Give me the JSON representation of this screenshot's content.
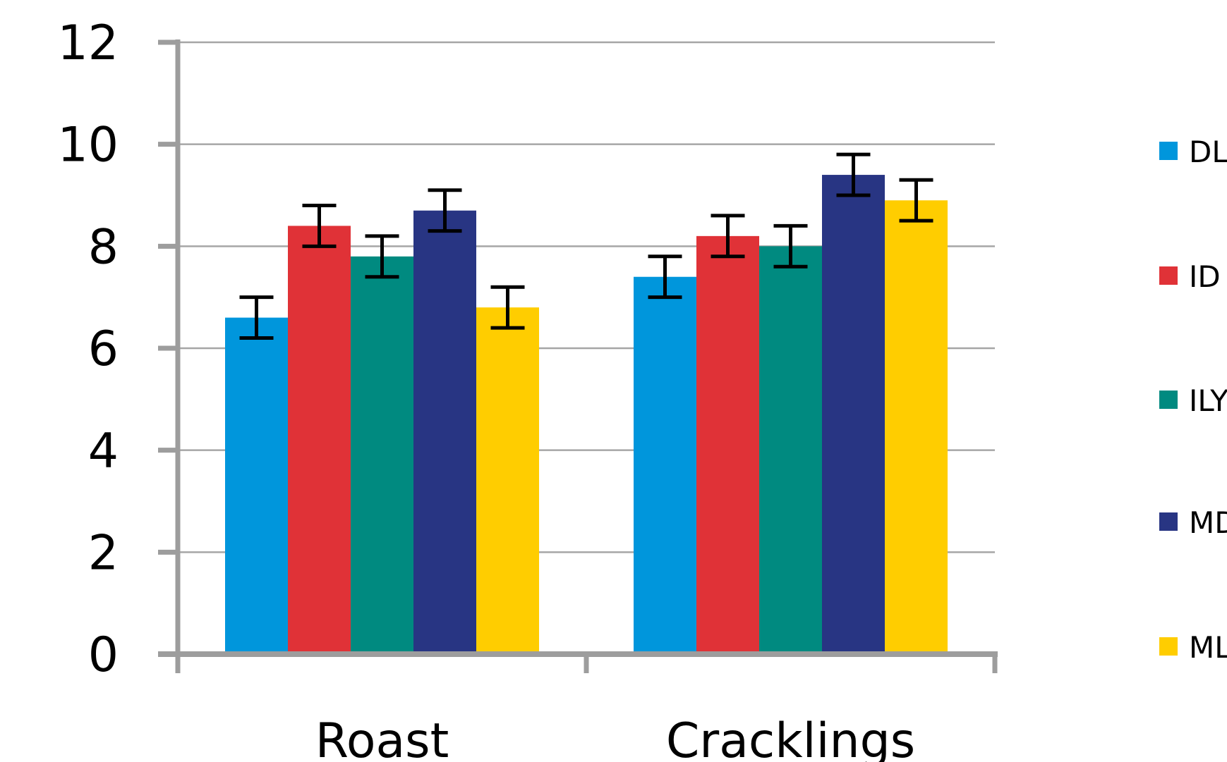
{
  "chart_data": {
    "type": "bar",
    "categories": [
      "Roast",
      "Cracklings"
    ],
    "series": [
      {
        "name": "DL",
        "color": "#0096dc",
        "values": [
          6.6,
          7.4
        ],
        "error": [
          0.4,
          0.4
        ]
      },
      {
        "name": "ID",
        "color": "#e03237",
        "values": [
          8.4,
          8.2
        ],
        "error": [
          0.4,
          0.4
        ]
      },
      {
        "name": "ILY",
        "color": "#008a80",
        "values": [
          7.8,
          8.0
        ],
        "error": [
          0.4,
          0.4
        ]
      },
      {
        "name": "MD",
        "color": "#283583",
        "values": [
          8.7,
          9.4
        ],
        "error": [
          0.4,
          0.4
        ]
      },
      {
        "name": "ML",
        "color": "#ffcd00",
        "values": [
          6.8,
          8.9
        ],
        "error": [
          0.4,
          0.4
        ]
      }
    ],
    "ylim": [
      0,
      12
    ],
    "yticks": [
      "0",
      "2",
      "4",
      "6",
      "8",
      "10",
      "12"
    ],
    "grid": true,
    "legend": "right",
    "axis_color": "#9d9d9d",
    "grid_color": "#a6a6a6",
    "error_bar_color": "#000000"
  }
}
